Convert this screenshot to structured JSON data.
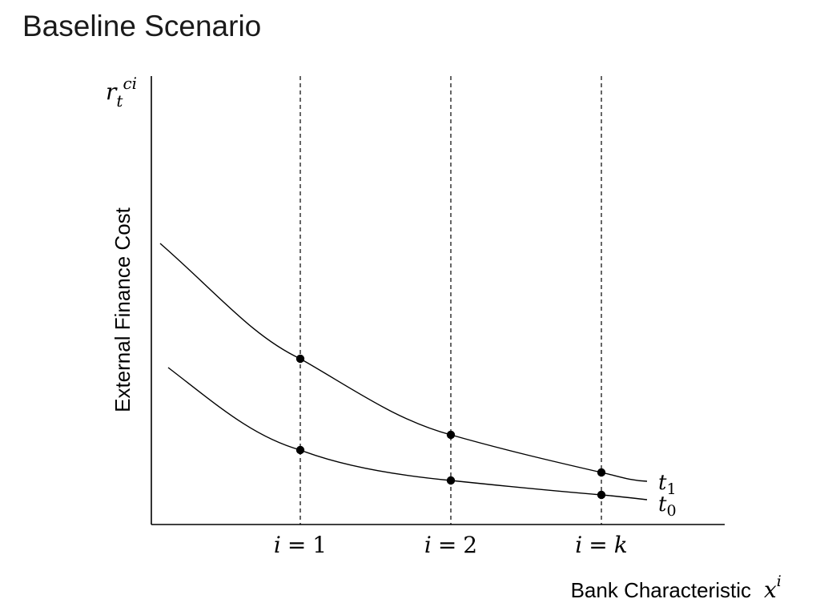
{
  "slide": {
    "title": "Baseline Scenario"
  },
  "diagram": {
    "y_axis": {
      "symbol_base": "r",
      "symbol_sub": "t",
      "symbol_sup": "ci",
      "label": "External Finance Cost"
    },
    "x_axis": {
      "label": "Bank Characteristic",
      "symbol_base": "x",
      "symbol_sup": "i"
    },
    "markers": [
      {
        "var": "i",
        "eq": "=",
        "val": "1"
      },
      {
        "var": "i",
        "eq": "=",
        "val": "2"
      },
      {
        "var": "i",
        "eq": "=",
        "val": "k"
      }
    ],
    "curves": [
      {
        "label_base": "t",
        "label_sub": "1"
      },
      {
        "label_base": "t",
        "label_sub": "0"
      }
    ]
  }
}
